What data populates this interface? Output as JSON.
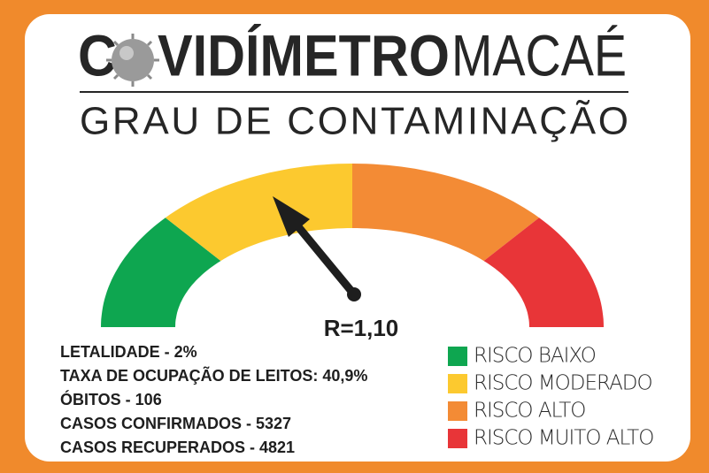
{
  "header": {
    "title": {
      "before-icon": "C",
      "after-icon": "VIDÍMETRO",
      "city": "MACAÉ"
    },
    "subtitle": "GRAU DE CONTAMINAÇÃO"
  },
  "gauge": {
    "reading": "R=1,10"
  },
  "stats": [
    "LETALIDADE - 2%",
    "TAXA DE OCUPAÇÃO DE LEITOS: 40,9%",
    "ÓBITOS - 106",
    "CASOS CONFIRMADOS - 5327",
    "CASOS RECUPERADOS - 4821"
  ],
  "legend": [
    {
      "label": "RISCO BAIXO",
      "color": "#0ea650"
    },
    {
      "label": "RISCO MODERADO",
      "color": "#fcc92f"
    },
    {
      "label": "RISCO ALTO",
      "color": "#f38b35"
    },
    {
      "label": "RISCO MUITO ALTO",
      "color": "#e83538"
    }
  ]
}
